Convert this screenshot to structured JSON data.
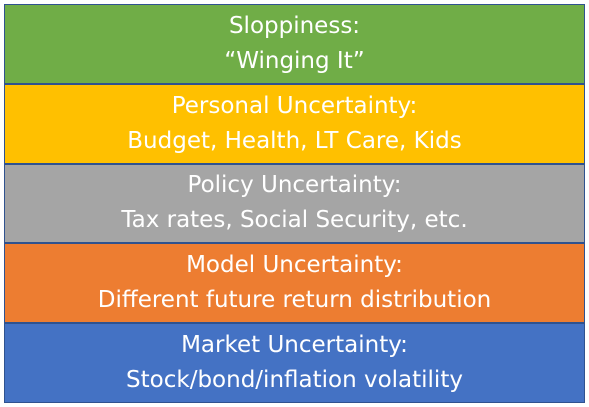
{
  "layers": [
    {
      "title": "Sloppiness:",
      "subtitle": "“Winging It”",
      "color": "#70ad47"
    },
    {
      "title": "Personal Uncertainty:",
      "subtitle": "Budget, Health, LT Care, Kids",
      "color": "#ffc000"
    },
    {
      "title": "Policy Uncertainty:",
      "subtitle": "Tax rates, Social Security, etc.",
      "color": "#a5a5a5"
    },
    {
      "title": "Model Uncertainty:",
      "subtitle": "Different future return distribution",
      "color": "#ed7d31"
    },
    {
      "title": "Market Uncertainty:",
      "subtitle": "Stock/bond/inflation volatility",
      "color": "#4472c4"
    }
  ]
}
